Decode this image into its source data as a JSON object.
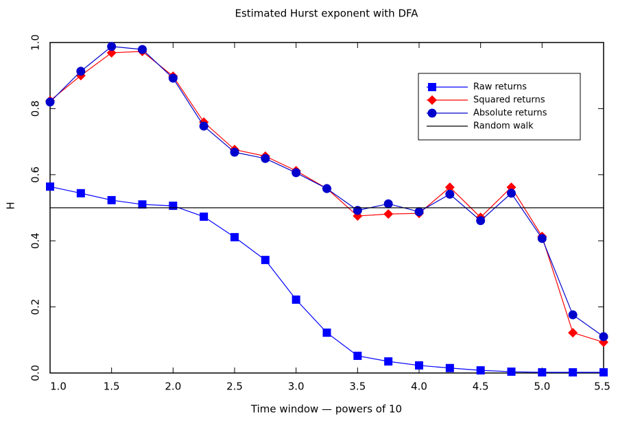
{
  "chart_data": {
    "type": "line",
    "title": "Estimated Hurst exponent with DFA",
    "x_label": "Time window — powers of 10",
    "y_label": "H",
    "x": [
      1.0,
      1.25,
      1.5,
      1.75,
      2.0,
      2.25,
      2.5,
      2.75,
      3.0,
      3.25,
      3.5,
      3.75,
      4.0,
      4.25,
      4.5,
      4.75,
      5.0,
      5.25,
      5.5
    ],
    "series": [
      {
        "name": "Raw returns",
        "color": "#0000ff",
        "marker": "square",
        "values": [
          0.564,
          0.544,
          0.523,
          0.51,
          0.506,
          0.473,
          0.411,
          0.342,
          0.222,
          0.122,
          0.052,
          0.035,
          0.023,
          0.015,
          0.008,
          0.004,
          0.002,
          0.002,
          0.002
        ]
      },
      {
        "name": "Squared returns",
        "color": "#ff0000",
        "marker": "diamond",
        "values": [
          0.824,
          0.9,
          0.969,
          0.973,
          0.898,
          0.759,
          0.676,
          0.656,
          0.612,
          0.558,
          0.475,
          0.481,
          0.483,
          0.562,
          0.471,
          0.562,
          0.413,
          0.122,
          0.093
        ]
      },
      {
        "name": "Absolute returns",
        "color": "#0000cc",
        "marker": "circle",
        "values": [
          0.82,
          0.913,
          0.988,
          0.979,
          0.892,
          0.747,
          0.668,
          0.649,
          0.606,
          0.558,
          0.492,
          0.512,
          0.488,
          0.541,
          0.461,
          0.544,
          0.407,
          0.176,
          0.11
        ]
      },
      {
        "name": "Random walk",
        "color": "#000000",
        "hline": 0.5
      }
    ],
    "xlim": [
      1.0,
      5.5
    ],
    "xticks": [
      {
        "value": 1.0,
        "label": "1.0"
      },
      1.5,
      {
        "value": 2.0,
        "label": "2.0"
      },
      2.5,
      {
        "value": 3.0,
        "label": "3.0"
      },
      3.5,
      {
        "value": 4.0,
        "label": "4.0"
      },
      4.5,
      {
        "value": 5.0,
        "label": "5.0"
      },
      5.5
    ],
    "ylim": [
      0,
      1
    ],
    "yticks": [
      {
        "value": 0,
        "label": "0.0"
      },
      0.2,
      0.4,
      0.6,
      0.8,
      {
        "value": 1,
        "label": "1.0"
      }
    ]
  }
}
